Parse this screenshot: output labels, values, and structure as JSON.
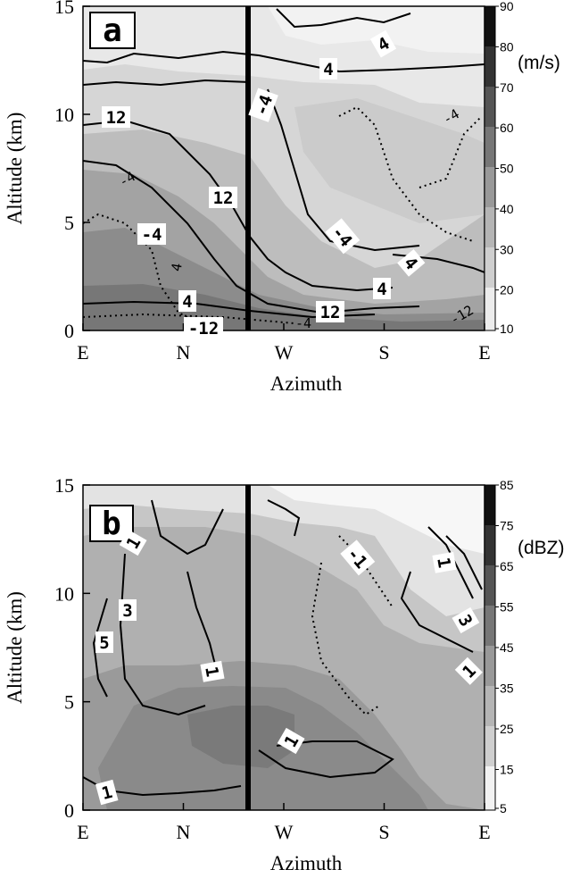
{
  "chart_data": [
    {
      "type": "contour",
      "panel_label": "a",
      "xlabel": "Azimuth",
      "ylabel": "Altitude (km)",
      "x_categories": [
        "E",
        "N",
        "W",
        "S",
        "E"
      ],
      "y_ticks": [
        0,
        5,
        10,
        15
      ],
      "ylim": [
        0,
        15
      ],
      "colorbar": {
        "ticks": [
          10,
          20,
          30,
          40,
          50,
          60,
          70,
          80,
          90
        ],
        "unit": "(m/s)"
      },
      "contour_labels": [
        "12",
        "-4",
        "4",
        "-12",
        "12",
        "4",
        "12",
        "4",
        "-4",
        "-4",
        "4",
        "4"
      ],
      "small_contour_labels": [
        "-4",
        "4",
        "-4",
        "-12",
        "-4"
      ]
    },
    {
      "type": "contour",
      "panel_label": "b",
      "xlabel": "Azimuth",
      "ylabel": "Altitude (km)",
      "x_categories": [
        "E",
        "N",
        "W",
        "S",
        "E"
      ],
      "y_ticks": [
        0,
        5,
        10,
        15
      ],
      "ylim": [
        0,
        15
      ],
      "colorbar": {
        "ticks": [
          5,
          15,
          25,
          35,
          45,
          55,
          65,
          75,
          85
        ],
        "unit": "(dBZ)"
      },
      "contour_labels": [
        "1",
        "3",
        "5",
        "1",
        "1",
        "1",
        "-1",
        "1",
        "3",
        "1"
      ]
    }
  ]
}
